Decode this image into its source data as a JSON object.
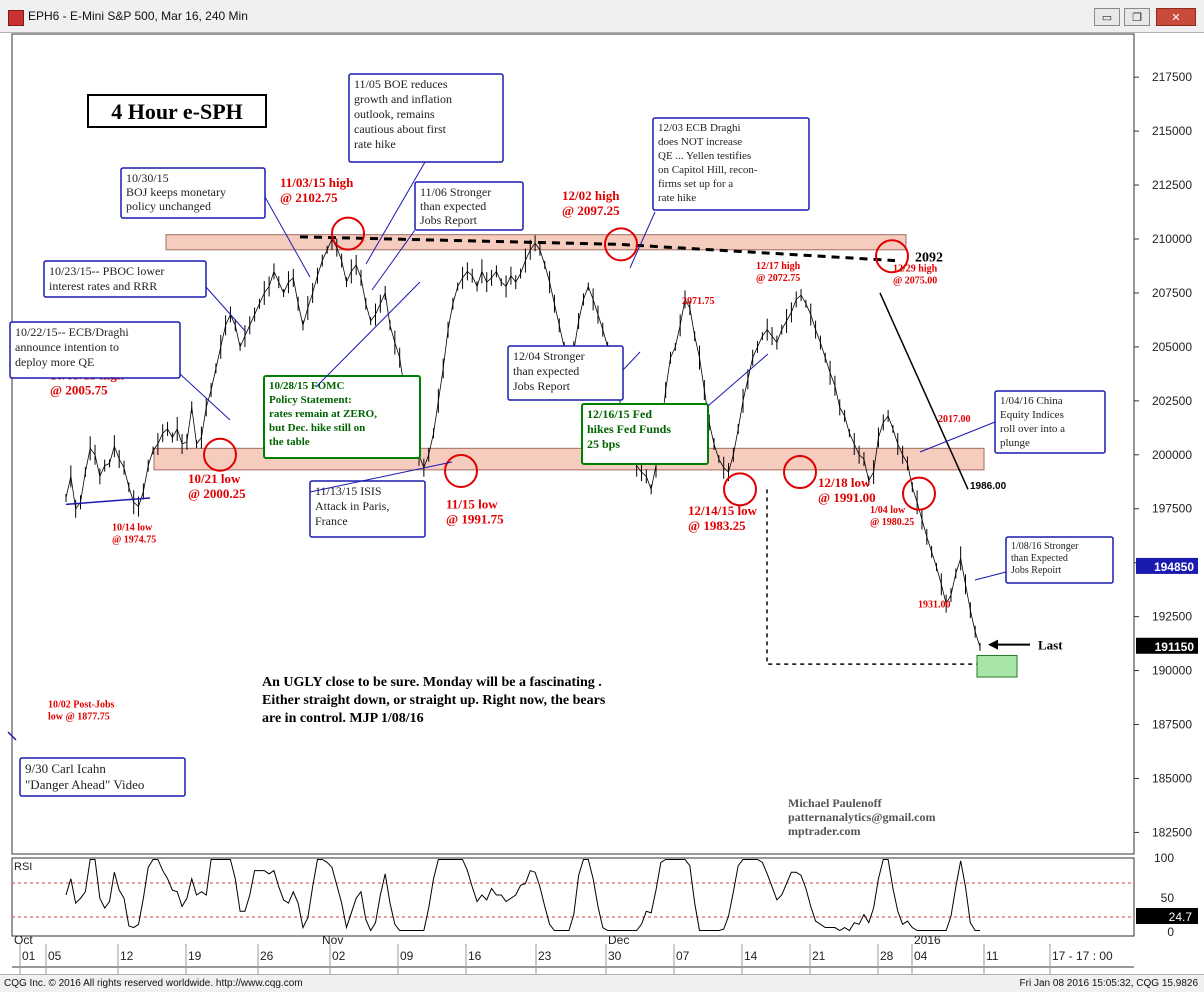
{
  "window": {
    "title": "EPH6 - E-Mini S&P 500, Mar 16, 240 Min",
    "minimize": "▭",
    "restore": "❐",
    "close": "✕"
  },
  "status": {
    "left": "CQG Inc. © 2016 All rights reserved worldwide. http://www.cqg.com",
    "right": "Fri Jan 08 2016 15:05:32, CQG 15.9826"
  },
  "chart_data": {
    "type": "line",
    "title": "4 Hour e-SPH",
    "ylim": [
      1815,
      2195
    ],
    "y_ticks": [
      "217500",
      "215000",
      "212500",
      "210000",
      "207500",
      "205000",
      "202500",
      "200000",
      "197500",
      "195000",
      "192500",
      "190000",
      "187500",
      "185000",
      "182500"
    ],
    "x_ticks": [
      "01",
      "05",
      "12",
      "19",
      "26",
      "02",
      "09",
      "16",
      "23",
      "30",
      "07",
      "14",
      "21",
      "28",
      "04",
      "11",
      "17 - 17 : 00"
    ],
    "month_labels": [
      "Oct",
      "Nov",
      "Dec",
      "2016"
    ],
    "price_labels": {
      "current": "194850",
      "last": "191150",
      "rsi": "24.7"
    },
    "rsi_ticks": [
      "100",
      "50",
      "0"
    ],
    "rsi_label": "RSI",
    "series": [
      {
        "values": [
          1980,
          1990,
          1975,
          1978,
          1992,
          2003,
          2000,
          1990,
          1995,
          1996,
          2004,
          1998,
          1994,
          1985,
          1978,
          1976,
          1983,
          1995,
          2002,
          2005,
          2010,
          2012,
          2008,
          2012,
          2005,
          2006,
          2022,
          2005,
          2008,
          2022,
          2030,
          2040,
          2050,
          2060,
          2065,
          2060,
          2050,
          2055,
          2060,
          2065,
          2070,
          2075,
          2078,
          2085,
          2080,
          2075,
          2080,
          2082,
          2070,
          2060,
          2068,
          2075,
          2083,
          2090,
          2095,
          2100,
          2096,
          2090,
          2080,
          2085,
          2088,
          2082,
          2070,
          2062,
          2065,
          2070,
          2075,
          2060,
          2052,
          2045,
          2030,
          2020,
          2008,
          2000,
          1994,
          2000,
          2010,
          2025,
          2040,
          2058,
          2070,
          2078,
          2082,
          2085,
          2083,
          2078,
          2085,
          2080,
          2082,
          2085,
          2080,
          2078,
          2083,
          2080,
          2084,
          2090,
          2095,
          2098,
          2095,
          2088,
          2080,
          2070,
          2060,
          2050,
          2040,
          2048,
          2062,
          2072,
          2078,
          2072,
          2065,
          2058,
          2050,
          2040,
          2030,
          2020,
          2010,
          2000,
          1995,
          1992,
          1990,
          1984,
          1995,
          2010,
          2030,
          2045,
          2050,
          2060,
          2072,
          2068,
          2055,
          2045,
          2030,
          2015,
          2005,
          1998,
          1994,
          1992,
          2000,
          2012,
          2025,
          2035,
          2045,
          2050,
          2055,
          2058,
          2055,
          2052,
          2058,
          2062,
          2066,
          2072,
          2074,
          2070,
          2065,
          2058,
          2052,
          2045,
          2038,
          2032,
          2022,
          2018,
          2010,
          2005,
          2000,
          1998,
          1988,
          1992,
          2008,
          2015,
          2018,
          2012,
          2005,
          2000,
          1996,
          1985,
          1978,
          1970,
          1962,
          1955,
          1948,
          1940,
          1931,
          1935,
          1945,
          1952,
          1940,
          1928,
          1918,
          1911
        ]
      }
    ],
    "trend_levels": {
      "top_zone": [
        2098,
        2102
      ],
      "bottom_zone": [
        1993,
        2003
      ],
      "resistance_2092": "2092",
      "fall_line_end": "1986.00",
      "target_box": [
        1897,
        1907
      ]
    },
    "annotations": {
      "oct22": "10/22/15-- ECB/Draghi announce intention to deploy more QE",
      "oct23": "10/23/15-- PBOC lower interest rates and RRR",
      "oct30": "10/30/15 BOJ keeps monetary policy unchanged",
      "nov05": "11/05 BOE reduces growth and inflation outlook, remains cautious about first rate hike",
      "nov06": "11/06 Stronger than expected Jobs Report",
      "dec03": "12/03 ECB Draghi does NOT increase QE ... Yellen testifies on Capitol Hill, recon- firms set up for a rate hike",
      "oct28": "10/28/15 FOMC Policy Statement: rates remain at ZERO, but Dec. hike still on the table",
      "nov13": "11/13/15 ISIS Attack in Paris, France",
      "dec04": "12/04 Stronger than expected Jobs Report",
      "dec16": "12/16/15 Fed hikes Fed Funds 25 bps",
      "jan04": "1/04/16 China Equity Indices roll over into a plunge",
      "jan08": "1/08/16 Stronger than Expected Jobs Repoirt",
      "icahn": "9/30 Carl Icahn \"Danger Ahead\" Video",
      "comment": "An UGLY close to be sure. Monday will be a fascinating . Either straight down, or straight up. Right now, the bears are in control. MJP 1/08/16",
      "author": "Michael Paulenoff\npatternanalytics@gmail.com\nmptrader.com",
      "last": "Last",
      "lvl_2092": "2092",
      "lvl_1986": "1986.00"
    },
    "price_notes": {
      "oct09": "10/09/15 high\n@ 2005.75",
      "oct14": "10/14 low\n@ 1974.75",
      "oct21": "10/21 low\n@ 2000.25",
      "nov03": "11/03/15 high\n@ 2102.75",
      "nov15": "11/15 low\n@ 1991.75",
      "dec02": "12/02 high\n@ 2097.25",
      "dec14": "12/14/15 low\n@ 1983.25",
      "dec17": "12/17 high\n@ 2072.75",
      "dec18": "12/18 low\n@ 1991.00",
      "dec29": "12/29 high\n@ 2075.00",
      "jan04": "1/04 low\n@ 1980.25",
      "p2071": "2071.75",
      "p2017": "2017.00",
      "p1931": "1931.00",
      "oct02": "10/02 Post-Jobs\nlow @ 1877.75"
    },
    "colors": {
      "red": "#e00000",
      "blue": "#1a1ab0",
      "green": "#008000",
      "zone": "#f4c0b0"
    }
  }
}
